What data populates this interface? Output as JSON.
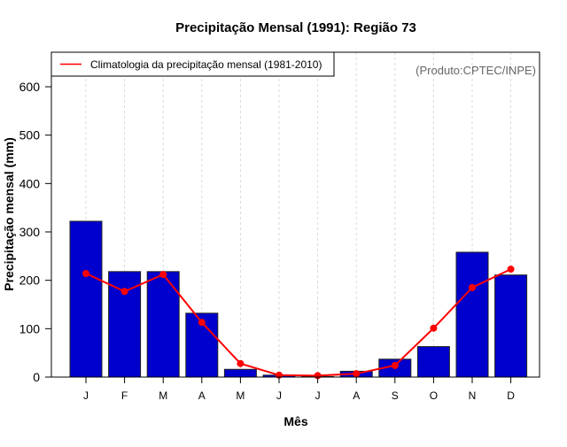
{
  "chart_data": {
    "type": "bar",
    "title": "Precipitação Mensal (1991): Região 73",
    "xlabel": "Mês",
    "ylabel": "Precipitação mensal (mm)",
    "categories": [
      "J",
      "F",
      "M",
      "A",
      "M",
      "J",
      "J",
      "A",
      "S",
      "O",
      "N",
      "D"
    ],
    "ylim": [
      0,
      600
    ],
    "yticks": [
      0,
      100,
      200,
      300,
      400,
      500,
      600
    ],
    "grid": "vertical-dashed",
    "series": [
      {
        "name": "Precipitação mensal (1991)",
        "type": "bar",
        "color": "#0000CD",
        "values": [
          322,
          218,
          218,
          132,
          16,
          4,
          1,
          12,
          37,
          63,
          258,
          211
        ]
      },
      {
        "name": "Climatologia da precipitação mensal (1981-2010)",
        "type": "line",
        "color": "#FF0000",
        "values": [
          214,
          177,
          212,
          113,
          28,
          4,
          3,
          7,
          24,
          101,
          185,
          223
        ]
      }
    ],
    "legend": {
      "position": "top-left",
      "entries": [
        "Climatologia da precipitação mensal (1981-2010)"
      ]
    },
    "annotation": "(Produto:CPTEC/INPE)"
  }
}
